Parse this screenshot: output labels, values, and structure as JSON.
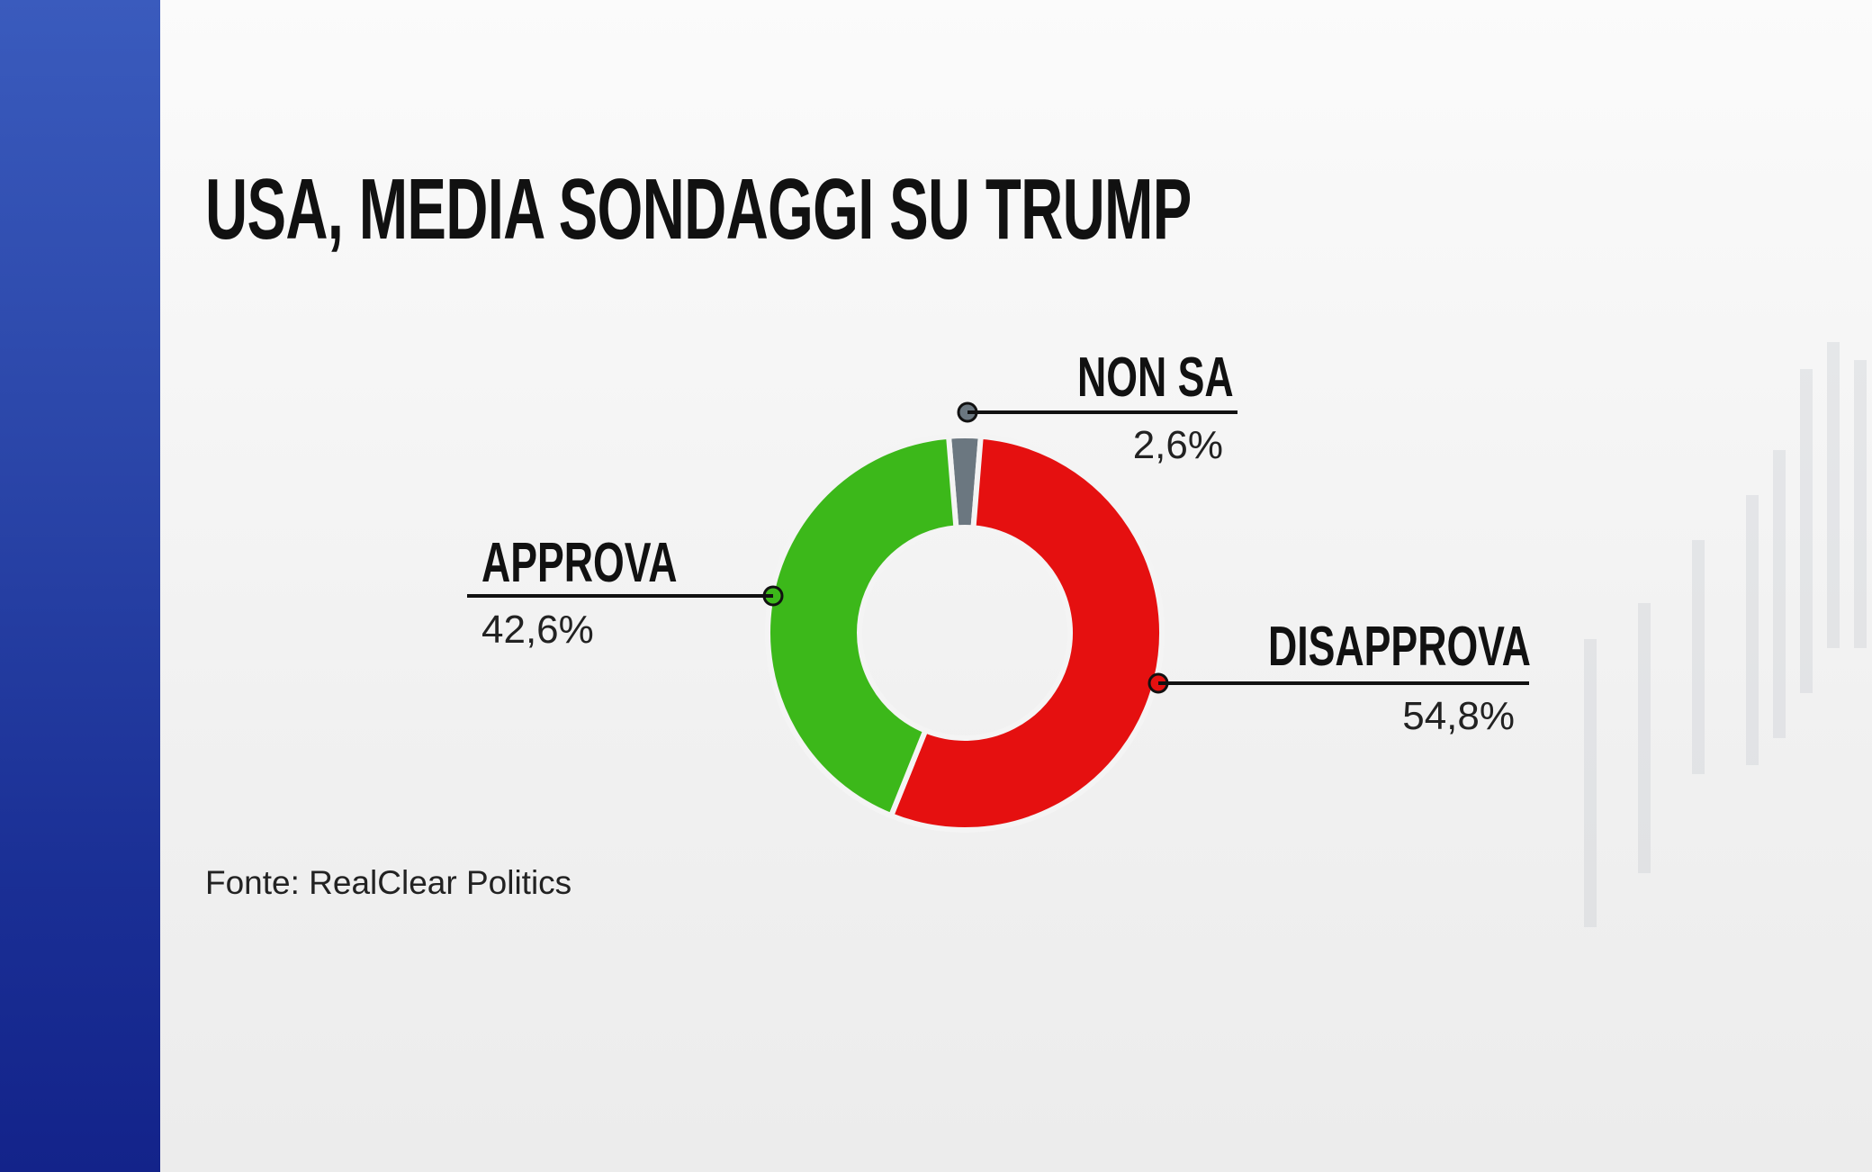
{
  "title": "USA, MEDIA SONDAGGI SU TRUMP",
  "source": "Fonte: RealClear Politics",
  "chart_data": {
    "type": "pie",
    "subtype": "donut",
    "title": "USA, MEDIA SONDAGGI SU TRUMP",
    "slices": [
      {
        "label": "NON SA",
        "value": 2.6,
        "value_label": "2,6%",
        "color": "#6b7780"
      },
      {
        "label": "DISAPPROVA",
        "value": 54.8,
        "value_label": "54,8%",
        "color": "#e51010"
      },
      {
        "label": "APPROVA",
        "value": 42.6,
        "value_label": "42,6%",
        "color": "#3cb81a"
      }
    ]
  },
  "colors": {
    "sidebar": "#2a45a8",
    "background": "#f2f2f2"
  }
}
